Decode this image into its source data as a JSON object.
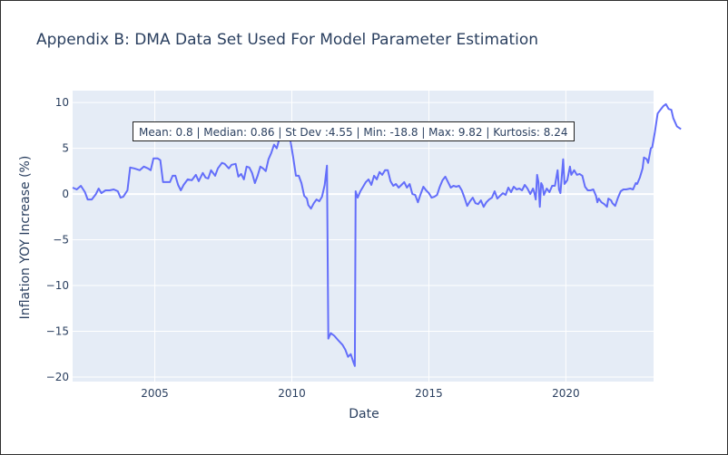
{
  "chart_data": {
    "type": "line",
    "title": "Appendix B: DMA Data Set Used For Model Parameter Estimation",
    "xlabel": "Date",
    "ylabel": "Inflation YOY Increase (%)",
    "annotation": "Mean: 0.8 | Median: 0.86 | St Dev :4.55 | Min: -18.8 | Max: 9.82 | Kurtosis: 8.24",
    "x_range": [
      2002.0,
      2023.2
    ],
    "ylim": [
      -20.5,
      11.3
    ],
    "x_ticks": [
      2005,
      2010,
      2015,
      2020
    ],
    "x_tick_labels": [
      "2005",
      "2010",
      "2015",
      "2020"
    ],
    "y_ticks": [
      10,
      5,
      0,
      -5,
      -10,
      -15,
      -20
    ],
    "y_tick_labels": [
      "10",
      "5",
      "0",
      "−5",
      "−10",
      "−15",
      "−20"
    ],
    "grid": true,
    "line_color": "#636efa",
    "plot_bg": "#e5ecf6",
    "series": [
      {
        "points": [
          [
            2002.0,
            0.7
          ],
          [
            2002.15,
            0.5
          ],
          [
            2002.3,
            0.9
          ],
          [
            2002.45,
            0.2
          ],
          [
            2002.55,
            -0.6
          ],
          [
            2002.7,
            -0.6
          ],
          [
            2002.85,
            0.0
          ],
          [
            2002.95,
            0.6
          ],
          [
            2003.05,
            0.1
          ],
          [
            2003.2,
            0.4
          ],
          [
            2003.35,
            0.4
          ],
          [
            2003.5,
            0.5
          ],
          [
            2003.65,
            0.3
          ],
          [
            2003.75,
            -0.4
          ],
          [
            2003.85,
            -0.3
          ],
          [
            2004.0,
            0.4
          ],
          [
            2004.1,
            2.9
          ],
          [
            2004.25,
            2.8
          ],
          [
            2004.45,
            2.6
          ],
          [
            2004.6,
            3.0
          ],
          [
            2004.75,
            2.8
          ],
          [
            2004.85,
            2.6
          ],
          [
            2004.95,
            3.9
          ],
          [
            2005.1,
            3.9
          ],
          [
            2005.2,
            3.7
          ],
          [
            2005.3,
            1.3
          ],
          [
            2005.45,
            1.3
          ],
          [
            2005.55,
            1.3
          ],
          [
            2005.65,
            2.0
          ],
          [
            2005.75,
            2.0
          ],
          [
            2005.85,
            1.0
          ],
          [
            2005.95,
            0.4
          ],
          [
            2006.05,
            1.0
          ],
          [
            2006.2,
            1.6
          ],
          [
            2006.35,
            1.5
          ],
          [
            2006.5,
            2.1
          ],
          [
            2006.6,
            1.4
          ],
          [
            2006.75,
            2.3
          ],
          [
            2006.85,
            1.8
          ],
          [
            2006.95,
            1.7
          ],
          [
            2007.05,
            2.6
          ],
          [
            2007.2,
            2.0
          ],
          [
            2007.3,
            2.8
          ],
          [
            2007.45,
            3.4
          ],
          [
            2007.55,
            3.3
          ],
          [
            2007.7,
            2.8
          ],
          [
            2007.8,
            3.2
          ],
          [
            2007.95,
            3.3
          ],
          [
            2008.05,
            1.9
          ],
          [
            2008.15,
            2.2
          ],
          [
            2008.25,
            1.6
          ],
          [
            2008.35,
            3.0
          ],
          [
            2008.45,
            2.9
          ],
          [
            2008.55,
            2.3
          ],
          [
            2008.65,
            1.2
          ],
          [
            2008.75,
            2.0
          ],
          [
            2008.85,
            3.0
          ],
          [
            2008.95,
            2.8
          ],
          [
            2009.05,
            2.5
          ],
          [
            2009.15,
            3.8
          ],
          [
            2009.25,
            4.5
          ],
          [
            2009.35,
            5.4
          ],
          [
            2009.45,
            5.0
          ],
          [
            2009.55,
            6.1
          ],
          [
            2009.7,
            6.3
          ],
          [
            2009.85,
            6.0
          ],
          [
            2009.95,
            5.8
          ],
          [
            2010.05,
            4.0
          ],
          [
            2010.15,
            2.0
          ],
          [
            2010.25,
            2.0
          ],
          [
            2010.35,
            1.2
          ],
          [
            2010.45,
            -0.2
          ],
          [
            2010.55,
            -0.5
          ],
          [
            2010.6,
            -1.2
          ],
          [
            2010.7,
            -1.6
          ],
          [
            2010.8,
            -1.0
          ],
          [
            2010.9,
            -0.6
          ],
          [
            2011.0,
            -0.8
          ],
          [
            2011.1,
            -0.3
          ],
          [
            2011.2,
            1.0
          ],
          [
            2011.28,
            3.1
          ],
          [
            2011.33,
            -15.8
          ],
          [
            2011.42,
            -15.2
          ],
          [
            2011.55,
            -15.5
          ],
          [
            2011.7,
            -16.0
          ],
          [
            2011.85,
            -16.5
          ],
          [
            2011.95,
            -17.0
          ],
          [
            2012.05,
            -17.8
          ],
          [
            2012.15,
            -17.5
          ],
          [
            2012.25,
            -18.4
          ],
          [
            2012.3,
            -18.8
          ],
          [
            2012.33,
            0.3
          ],
          [
            2012.4,
            -0.4
          ],
          [
            2012.5,
            0.3
          ],
          [
            2012.6,
            0.8
          ],
          [
            2012.7,
            1.3
          ],
          [
            2012.8,
            1.6
          ],
          [
            2012.9,
            1.0
          ],
          [
            2013.0,
            2.0
          ],
          [
            2013.1,
            1.6
          ],
          [
            2013.2,
            2.4
          ],
          [
            2013.3,
            2.1
          ],
          [
            2013.4,
            2.6
          ],
          [
            2013.5,
            2.6
          ],
          [
            2013.6,
            1.4
          ],
          [
            2013.7,
            0.9
          ],
          [
            2013.8,
            1.1
          ],
          [
            2013.9,
            0.7
          ],
          [
            2014.0,
            1.0
          ],
          [
            2014.1,
            1.3
          ],
          [
            2014.2,
            0.7
          ],
          [
            2014.3,
            1.1
          ],
          [
            2014.4,
            0.0
          ],
          [
            2014.5,
            -0.1
          ],
          [
            2014.6,
            -0.9
          ],
          [
            2014.7,
            0.0
          ],
          [
            2014.8,
            0.8
          ],
          [
            2014.9,
            0.4
          ],
          [
            2015.0,
            0.1
          ],
          [
            2015.1,
            -0.4
          ],
          [
            2015.2,
            -0.3
          ],
          [
            2015.3,
            -0.1
          ],
          [
            2015.4,
            0.8
          ],
          [
            2015.5,
            1.5
          ],
          [
            2015.6,
            1.9
          ],
          [
            2015.7,
            1.3
          ],
          [
            2015.8,
            0.7
          ],
          [
            2015.9,
            0.9
          ],
          [
            2016.0,
            0.8
          ],
          [
            2016.1,
            0.9
          ],
          [
            2016.2,
            0.4
          ],
          [
            2016.3,
            -0.4
          ],
          [
            2016.4,
            -1.3
          ],
          [
            2016.5,
            -0.8
          ],
          [
            2016.6,
            -0.4
          ],
          [
            2016.7,
            -1.0
          ],
          [
            2016.8,
            -1.1
          ],
          [
            2016.9,
            -0.7
          ],
          [
            2017.0,
            -1.4
          ],
          [
            2017.1,
            -0.9
          ],
          [
            2017.2,
            -0.6
          ],
          [
            2017.3,
            -0.4
          ],
          [
            2017.4,
            0.3
          ],
          [
            2017.5,
            -0.5
          ],
          [
            2017.6,
            -0.2
          ],
          [
            2017.7,
            0.1
          ],
          [
            2017.8,
            -0.1
          ],
          [
            2017.9,
            0.7
          ],
          [
            2018.0,
            0.2
          ],
          [
            2018.1,
            0.8
          ],
          [
            2018.2,
            0.5
          ],
          [
            2018.3,
            0.6
          ],
          [
            2018.4,
            0.4
          ],
          [
            2018.5,
            1.0
          ],
          [
            2018.6,
            0.6
          ],
          [
            2018.7,
            0.0
          ],
          [
            2018.8,
            0.6
          ],
          [
            2018.85,
            0.1
          ],
          [
            2018.9,
            -0.6
          ],
          [
            2018.95,
            2.1
          ],
          [
            2019.0,
            1.3
          ],
          [
            2019.05,
            -1.4
          ],
          [
            2019.1,
            1.2
          ],
          [
            2019.15,
            0.9
          ],
          [
            2019.2,
            -0.1
          ],
          [
            2019.3,
            0.6
          ],
          [
            2019.4,
            0.2
          ],
          [
            2019.5,
            0.9
          ],
          [
            2019.6,
            0.9
          ],
          [
            2019.7,
            2.6
          ],
          [
            2019.75,
            0.5
          ],
          [
            2019.8,
            0.1
          ],
          [
            2019.9,
            3.8
          ],
          [
            2019.95,
            1.1
          ],
          [
            2020.05,
            1.5
          ],
          [
            2020.15,
            3.0
          ],
          [
            2020.2,
            2.1
          ],
          [
            2020.3,
            2.6
          ],
          [
            2020.4,
            2.1
          ],
          [
            2020.5,
            2.2
          ],
          [
            2020.6,
            2.0
          ],
          [
            2020.7,
            0.8
          ],
          [
            2020.8,
            0.4
          ],
          [
            2020.9,
            0.4
          ],
          [
            2021.0,
            0.5
          ],
          [
            2021.1,
            -0.2
          ],
          [
            2021.15,
            -0.9
          ],
          [
            2021.2,
            -0.5
          ],
          [
            2021.3,
            -0.9
          ],
          [
            2021.4,
            -1.1
          ],
          [
            2021.5,
            -1.4
          ],
          [
            2021.55,
            -0.5
          ],
          [
            2021.65,
            -0.7
          ],
          [
            2021.7,
            -1.0
          ],
          [
            2021.8,
            -1.3
          ],
          [
            2021.9,
            -0.4
          ],
          [
            2022.0,
            0.3
          ],
          [
            2022.1,
            0.5
          ],
          [
            2022.2,
            0.5
          ],
          [
            2022.35,
            0.6
          ],
          [
            2022.45,
            0.5
          ],
          [
            2022.55,
            1.2
          ],
          [
            2022.6,
            1.1
          ],
          [
            2022.7,
            1.8
          ],
          [
            2022.8,
            2.8
          ],
          [
            2022.85,
            4.0
          ],
          [
            2022.95,
            3.8
          ],
          [
            2023.0,
            3.4
          ],
          [
            2023.1,
            5.0
          ],
          [
            2023.15,
            5.1
          ],
          [
            2023.25,
            6.8
          ],
          [
            2023.35,
            8.8
          ],
          [
            2023.45,
            9.2
          ],
          [
            2023.55,
            9.6
          ],
          [
            2023.65,
            9.82
          ],
          [
            2023.75,
            9.3
          ],
          [
            2023.85,
            9.2
          ],
          [
            2023.92,
            8.3
          ],
          [
            2024.05,
            7.4
          ],
          [
            2024.2,
            7.1
          ]
        ]
      }
    ]
  }
}
